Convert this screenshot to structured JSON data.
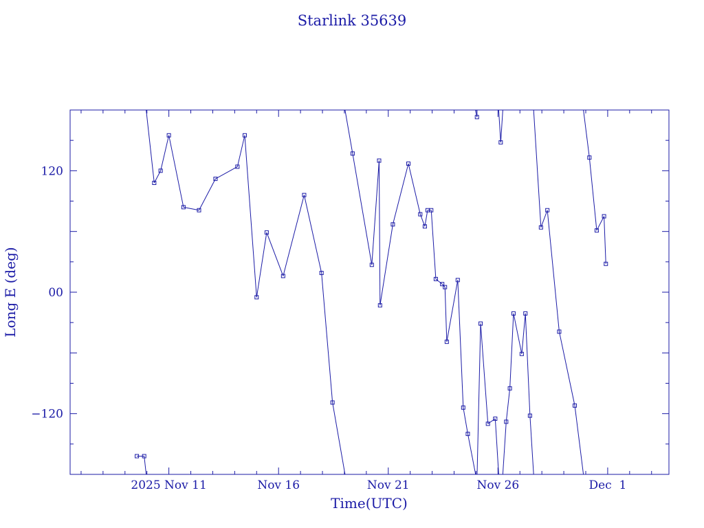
{
  "chart_data": {
    "type": "line",
    "title": "Starlink 35639",
    "xlabel": "Time(UTC)",
    "ylabel": "Long E (deg)",
    "xlim": [
      "2025-11-06T12:00",
      "2025-12-03T19:00"
    ],
    "ylim": [
      -180,
      180
    ],
    "x_tick_labels": [
      {
        "date": "2025-11-11",
        "label": "2025 Nov 11"
      },
      {
        "date": "2025-11-16",
        "label": "Nov 16"
      },
      {
        "date": "2025-11-21",
        "label": "Nov 21"
      },
      {
        "date": "2025-11-26",
        "label": "Nov 26"
      },
      {
        "date": "2025-12-01",
        "label": "Dec  1"
      }
    ],
    "y_tick_labels": [
      {
        "value": 120,
        "label": "120"
      },
      {
        "value": 0,
        "label": "00"
      },
      {
        "value": -120,
        "label": "−120"
      }
    ],
    "grid": false,
    "marker": "small-square",
    "color": "#1a1aa6",
    "series": [
      {
        "x": [
          "2025-11-09T13:00",
          "2025-11-09T21:00",
          "2025-11-10T08:00",
          "2025-11-10T15:00",
          "2025-11-11T00:00",
          "2025-11-11T16:00",
          "2025-11-12T09:00",
          "2025-11-13T03:00",
          "2025-11-14T03:00",
          "2025-11-14T11:00",
          "2025-11-15T00:00",
          "2025-11-15T11:00",
          "2025-11-16T05:00",
          "2025-11-17T04:00",
          "2025-11-17T23:00",
          "2025-11-18T11:00",
          "2025-11-19T09:00",
          "2025-11-20T06:00",
          "2025-11-20T14:00",
          "2025-11-20T15:00",
          "2025-11-21T05:00",
          "2025-11-21T22:00",
          "2025-11-22T11:00",
          "2025-11-22T16:00",
          "2025-11-22T19:00",
          "2025-11-22T23:00",
          "2025-11-23T04:00",
          "2025-11-23T11:00",
          "2025-11-23T14:00",
          "2025-11-23T16:00",
          "2025-11-24T04:00",
          "2025-11-24T10:00",
          "2025-11-24T15:00",
          "2025-11-25T01:00",
          "2025-11-25T05:00",
          "2025-11-25T13:00",
          "2025-11-25T21:00",
          "2025-11-26T03:00",
          "2025-11-26T09:00",
          "2025-11-26T13:00",
          "2025-11-26T17:00",
          "2025-11-27T02:00",
          "2025-11-27T06:00",
          "2025-11-27T11:00",
          "2025-11-27T23:00",
          "2025-11-28T06:00",
          "2025-11-28T19:00",
          "2025-11-29T12:00",
          "2025-11-30T04:00",
          "2025-11-30T12:00",
          "2025-11-30T20:00",
          "2025-11-30T22:00"
        ],
        "y": [
          -162,
          -162,
          108,
          120,
          155,
          84,
          81,
          112,
          124,
          155,
          -5,
          59,
          16,
          96,
          19,
          -109,
          137,
          27,
          130,
          -13,
          67,
          127,
          77,
          65,
          81,
          81,
          13,
          8,
          5,
          -49,
          12,
          -114,
          -140,
          173,
          -31,
          -130,
          -125,
          148,
          -128,
          -95,
          -21,
          -61,
          -21,
          -122,
          64,
          81,
          -39,
          -112,
          133,
          61,
          75,
          28
        ]
      }
    ]
  }
}
